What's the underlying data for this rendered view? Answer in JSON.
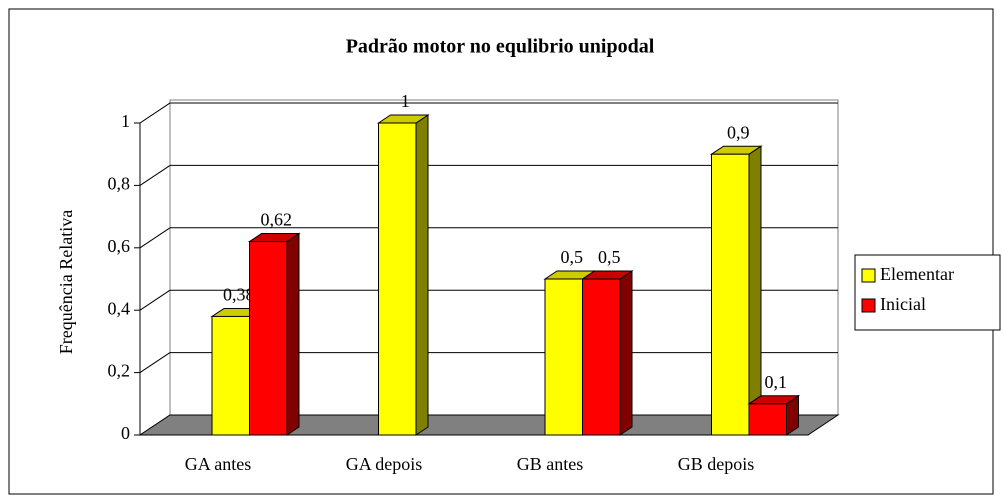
{
  "chart_data": {
    "type": "bar3d",
    "title": "Padrão motor no equlibrio unipodal",
    "y_label": "Frequência Relativa",
    "categories": [
      "GA antes",
      "GA depois",
      "GB antes",
      "GB depois"
    ],
    "series": [
      {
        "name": "Elementar",
        "color": "#ffff00",
        "values": [
          0.38,
          1,
          0.5,
          0.9
        ],
        "value_labels": [
          "0,38",
          "1",
          "0,5",
          "0,9"
        ]
      },
      {
        "name": "Inicial",
        "color": "#ff0000",
        "values": [
          0.62,
          null,
          0.5,
          0.1
        ],
        "value_labels": [
          "0,62",
          null,
          "0,5",
          "0,1"
        ]
      }
    ],
    "ylim": [
      0,
      1
    ],
    "yticks": [
      0,
      {
        "value": 0.2,
        "label": "0,2"
      },
      {
        "value": 0.4,
        "label": "0,4"
      },
      {
        "value": 0.6,
        "label": "0,6"
      },
      {
        "value": 0.8,
        "label": "0,8"
      },
      1
    ],
    "grid": true,
    "legend": "right"
  }
}
